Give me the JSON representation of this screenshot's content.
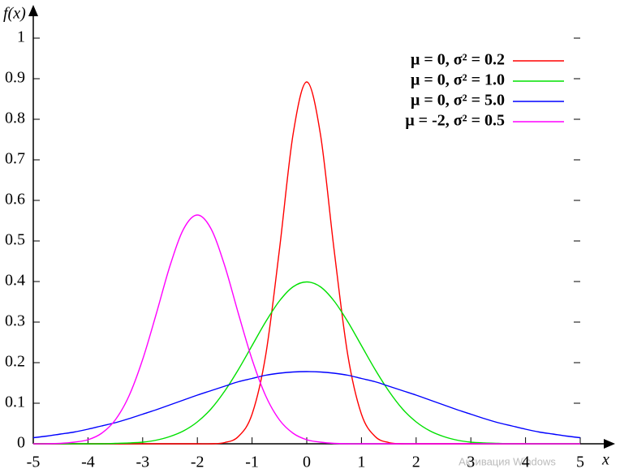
{
  "chart_data": {
    "type": "line",
    "y_label": "f(x)",
    "x_label": "x",
    "x": [
      -5,
      -4.75,
      -4.5,
      -4.25,
      -4,
      -3.75,
      -3.5,
      -3.25,
      -3,
      -2.75,
      -2.5,
      -2.25,
      -2,
      -1.75,
      -1.5,
      -1.25,
      -1,
      -0.75,
      -0.5,
      -0.25,
      0,
      0.25,
      0.5,
      0.75,
      1,
      1.25,
      1.5,
      1.75,
      2,
      2.25,
      2.5,
      2.75,
      3,
      3.25,
      3.5,
      3.75,
      4,
      4.25,
      4.5,
      4.75,
      5
    ],
    "series": [
      {
        "name": "μ = 0, σ² = 0.2",
        "color": "#ff0000",
        "values": [
          0,
          0,
          0,
          0,
          0,
          0,
          0,
          0,
          0,
          0,
          0,
          0,
          0,
          0,
          0.003,
          0.018,
          0.073,
          0.219,
          0.478,
          0.763,
          0.892,
          0.763,
          0.478,
          0.219,
          0.073,
          0.018,
          0.003,
          0,
          0,
          0,
          0,
          0,
          0,
          0,
          0,
          0,
          0,
          0,
          0,
          0,
          0
        ]
      },
      {
        "name": "μ = 0, σ² = 1.0",
        "color": "#00e000",
        "values": [
          0,
          0,
          0,
          0,
          0,
          0,
          0.001,
          0.002,
          0.004,
          0.009,
          0.018,
          0.032,
          0.054,
          0.086,
          0.13,
          0.183,
          0.242,
          0.301,
          0.352,
          0.387,
          0.399,
          0.387,
          0.352,
          0.301,
          0.242,
          0.183,
          0.13,
          0.086,
          0.054,
          0.032,
          0.018,
          0.009,
          0.004,
          0.002,
          0.001,
          0,
          0,
          0,
          0,
          0,
          0
        ]
      },
      {
        "name": "μ = 0, σ² = 5.0",
        "color": "#0000ff",
        "values": [
          0.015,
          0.019,
          0.024,
          0.029,
          0.036,
          0.044,
          0.052,
          0.062,
          0.073,
          0.084,
          0.096,
          0.108,
          0.12,
          0.131,
          0.142,
          0.153,
          0.161,
          0.169,
          0.174,
          0.177,
          0.178,
          0.177,
          0.174,
          0.169,
          0.161,
          0.153,
          0.142,
          0.131,
          0.12,
          0.108,
          0.096,
          0.084,
          0.073,
          0.062,
          0.052,
          0.044,
          0.036,
          0.029,
          0.024,
          0.019,
          0.015
        ]
      },
      {
        "name": "μ = -2, σ² = 0.5",
        "color": "#ff00ff",
        "values": [
          0,
          0,
          0.001,
          0.004,
          0.01,
          0.026,
          0.059,
          0.118,
          0.208,
          0.321,
          0.439,
          0.53,
          0.564,
          0.53,
          0.439,
          0.321,
          0.208,
          0.118,
          0.059,
          0.026,
          0.01,
          0.004,
          0.001,
          0,
          0,
          0,
          0,
          0,
          0,
          0,
          0,
          0,
          0,
          0,
          0,
          0,
          0,
          0,
          0,
          0,
          0
        ]
      }
    ],
    "xlim": [
      -5,
      5
    ],
    "xticks": [
      -5,
      -4,
      -3,
      -2,
      -1,
      0,
      1,
      2,
      3,
      4,
      5
    ],
    "ylim": [
      0,
      1
    ],
    "yticks": [
      0,
      0.1,
      0.2,
      0.3,
      0.4,
      0.5,
      0.6,
      0.7,
      0.8,
      0.9,
      1
    ],
    "legend": "upper right",
    "grid": false,
    "watermark": "Активация Windows"
  }
}
